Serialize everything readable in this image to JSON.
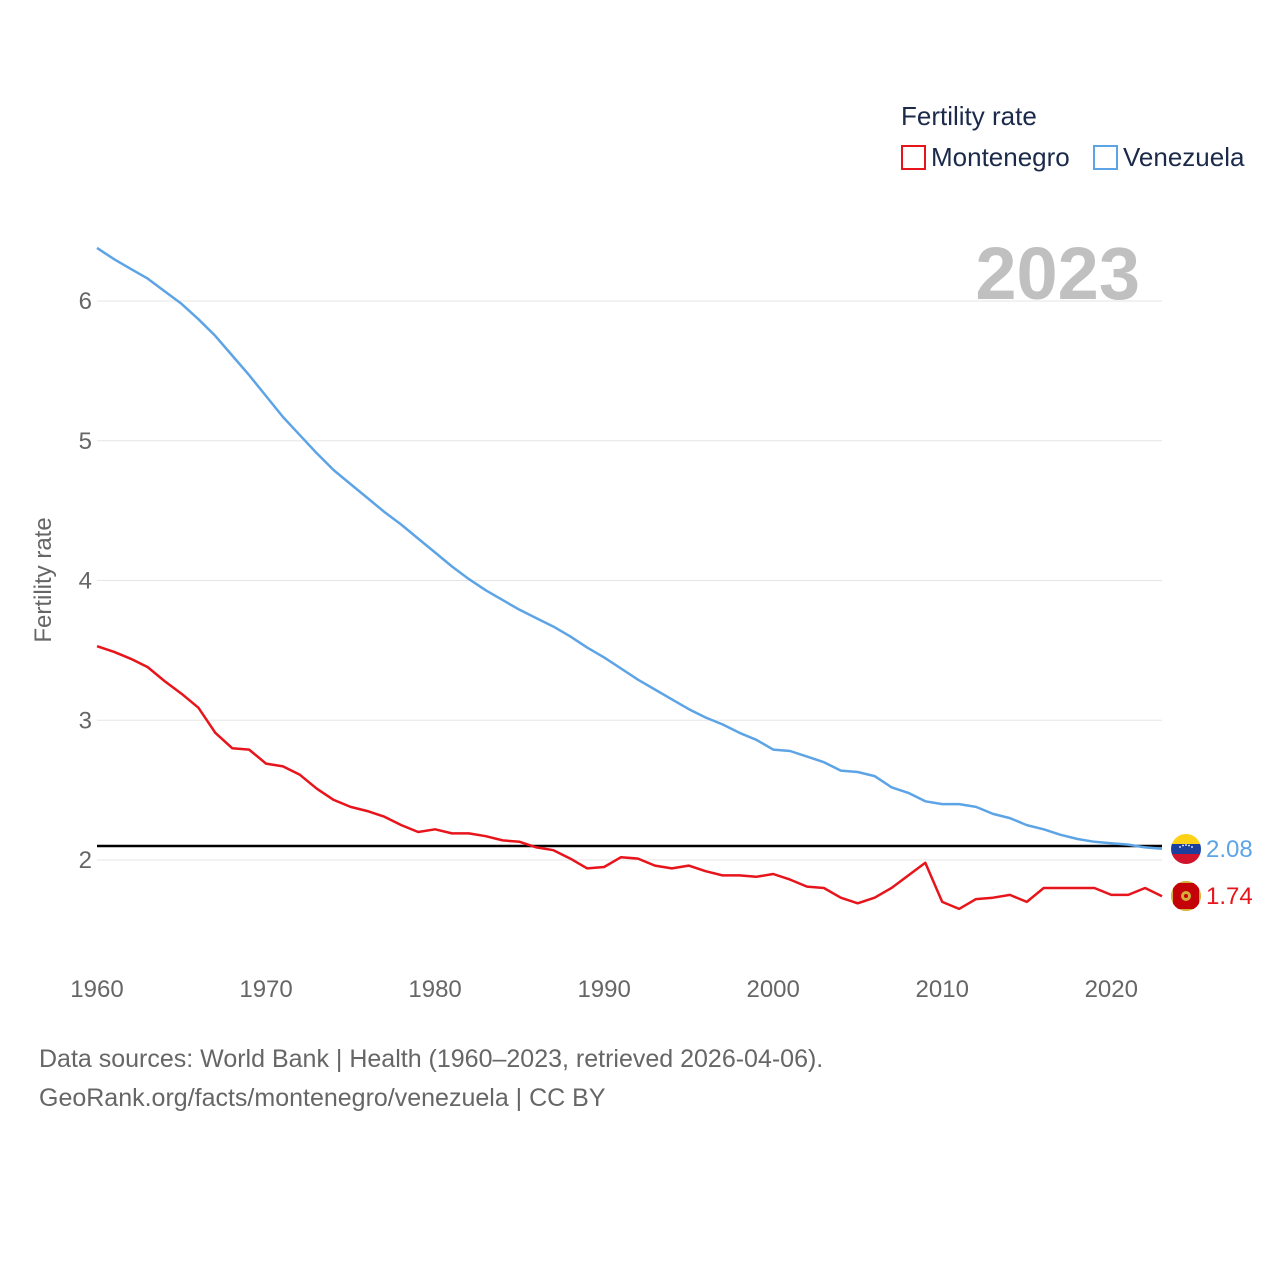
{
  "chart_data": {
    "type": "line",
    "title": "",
    "ylabel": "Fertility rate",
    "xlabel": "",
    "year_display": "2023",
    "xlim": [
      1960,
      2023
    ],
    "ylim": [
      1.5,
      6.5
    ],
    "yticks": [
      2,
      3,
      4,
      5,
      6
    ],
    "xticks": [
      1960,
      1970,
      1980,
      1990,
      2000,
      2010,
      2020
    ],
    "grid": true,
    "reference_line": 2.1,
    "legend": {
      "title": "Fertility rate",
      "position": "top-right"
    },
    "x": [
      1960,
      1961,
      1962,
      1963,
      1964,
      1965,
      1966,
      1967,
      1968,
      1969,
      1970,
      1971,
      1972,
      1973,
      1974,
      1975,
      1976,
      1977,
      1978,
      1979,
      1980,
      1981,
      1982,
      1983,
      1984,
      1985,
      1986,
      1987,
      1988,
      1989,
      1990,
      1991,
      1992,
      1993,
      1994,
      1995,
      1996,
      1997,
      1998,
      1999,
      2000,
      2001,
      2002,
      2003,
      2004,
      2005,
      2006,
      2007,
      2008,
      2009,
      2010,
      2011,
      2012,
      2013,
      2014,
      2015,
      2016,
      2017,
      2018,
      2019,
      2020,
      2021,
      2022,
      2023
    ],
    "series": [
      {
        "name": "Montenegro",
        "color": "#e8141b",
        "end_label": "1.74",
        "values": [
          3.53,
          3.49,
          3.44,
          3.38,
          3.28,
          3.19,
          3.09,
          2.91,
          2.8,
          2.79,
          2.69,
          2.67,
          2.61,
          2.51,
          2.43,
          2.38,
          2.35,
          2.31,
          2.25,
          2.2,
          2.22,
          2.19,
          2.19,
          2.17,
          2.14,
          2.13,
          2.09,
          2.07,
          2.01,
          1.94,
          1.95,
          2.02,
          2.01,
          1.96,
          1.94,
          1.96,
          1.92,
          1.89,
          1.89,
          1.88,
          1.9,
          1.86,
          1.81,
          1.8,
          1.73,
          1.69,
          1.73,
          1.8,
          1.89,
          1.98,
          1.7,
          1.65,
          1.72,
          1.73,
          1.75,
          1.7,
          1.8,
          1.8,
          1.8,
          1.8,
          1.75,
          1.75,
          1.8,
          1.74
        ]
      },
      {
        "name": "Venezuela",
        "color": "#5da4e6",
        "end_label": "2.08",
        "values": [
          6.38,
          6.3,
          6.23,
          6.16,
          6.07,
          5.98,
          5.87,
          5.75,
          5.61,
          5.47,
          5.32,
          5.17,
          5.04,
          4.91,
          4.79,
          4.69,
          4.59,
          4.49,
          4.4,
          4.3,
          4.2,
          4.1,
          4.01,
          3.93,
          3.86,
          3.79,
          3.73,
          3.67,
          3.6,
          3.52,
          3.45,
          3.37,
          3.29,
          3.22,
          3.15,
          3.08,
          3.02,
          2.97,
          2.91,
          2.86,
          2.79,
          2.78,
          2.74,
          2.7,
          2.64,
          2.63,
          2.6,
          2.52,
          2.48,
          2.42,
          2.4,
          2.4,
          2.38,
          2.33,
          2.3,
          2.25,
          2.22,
          2.18,
          2.15,
          2.13,
          2.12,
          2.11,
          2.09,
          2.08
        ]
      }
    ]
  },
  "footer": {
    "sources": "Data sources: World Bank | Health (1960–2023, retrieved 2026-04-06).",
    "credit": "GeoRank.org/facts/montenegro/venezuela | CC BY"
  }
}
